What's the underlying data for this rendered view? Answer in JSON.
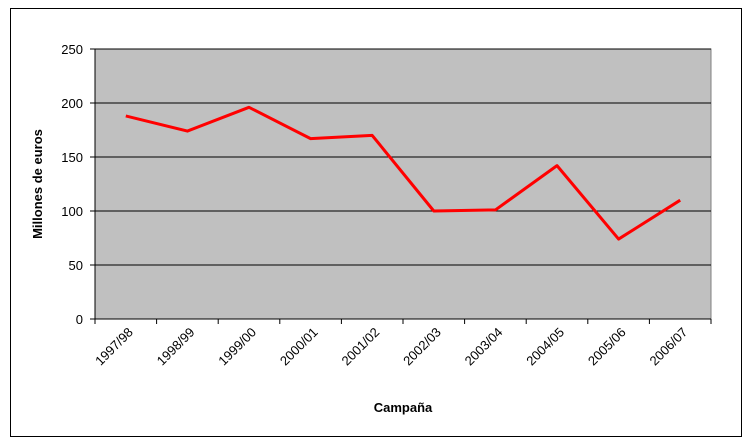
{
  "chart_data": {
    "type": "line",
    "x_label": "Campaña",
    "y_label": "Millones de euros",
    "categories": [
      "1997/98",
      "1998/99",
      "1999/00",
      "2000/01",
      "2001/02",
      "2002/03",
      "2003/04",
      "2004/05",
      "2005/06",
      "2006/07"
    ],
    "series": [
      {
        "color": "#ff0000",
        "values": [
          188,
          174,
          196,
          167,
          170,
          100,
          101,
          142,
          74,
          110
        ]
      }
    ],
    "ylim": [
      0,
      250
    ],
    "yticks": [
      0,
      50,
      100,
      150,
      200,
      250
    ],
    "grid": true,
    "plot_background": "#c0c0c0"
  }
}
